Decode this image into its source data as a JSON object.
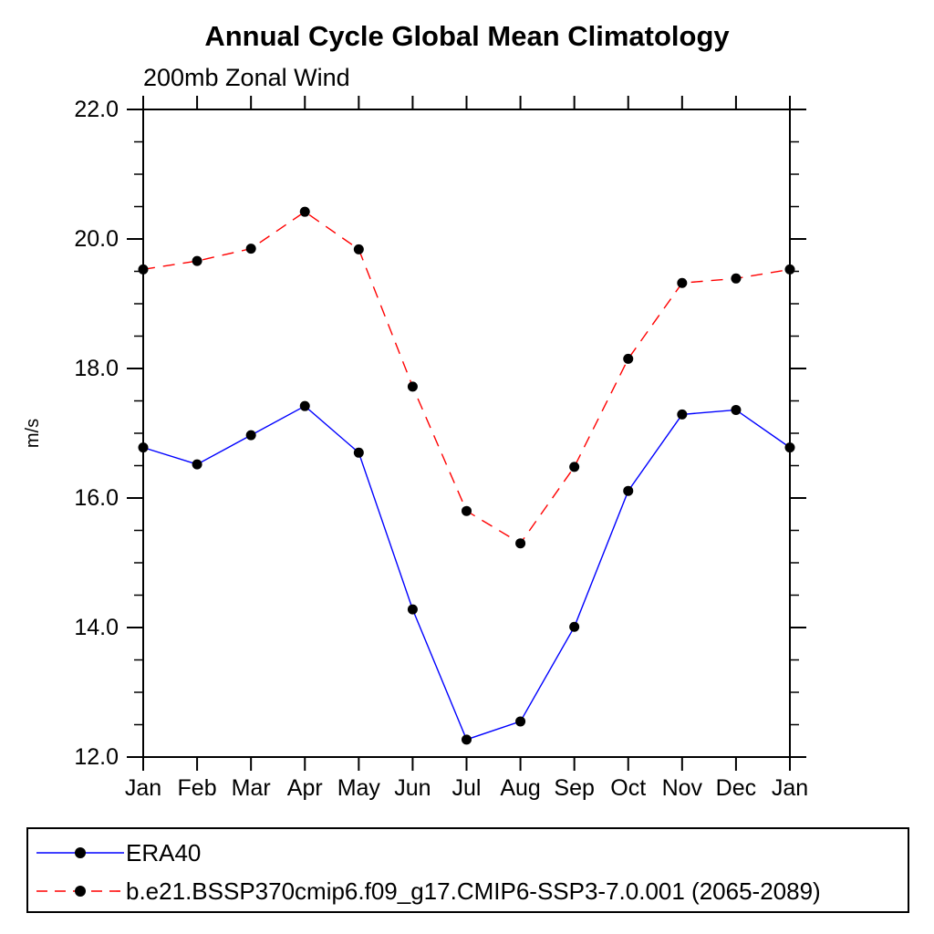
{
  "chart": {
    "title": "Annual Cycle Global Mean Climatology",
    "subtitle": "200mb Zonal Wind"
  },
  "chart_data": {
    "type": "line",
    "title": "Annual Cycle Global Mean Climatology",
    "subtitle": "200mb Zonal Wind",
    "xlabel": "",
    "ylabel": "m/s",
    "categories": [
      "Jan",
      "Feb",
      "Mar",
      "Apr",
      "May",
      "Jun",
      "Jul",
      "Aug",
      "Sep",
      "Oct",
      "Nov",
      "Dec",
      "Jan"
    ],
    "ylim": [
      12.0,
      22.0
    ],
    "ytick_major": [
      12.0,
      14.0,
      16.0,
      18.0,
      20.0,
      22.0
    ],
    "ytick_major_labels": [
      "12.0",
      "14.0",
      "16.0",
      "18.0",
      "20.0",
      "22.0"
    ],
    "ytick_minor_interval": 0.5,
    "grid": false,
    "legend_position": "bottom",
    "axis_color": "#000000",
    "marker_color": "#000000",
    "series": [
      {
        "name": "ERA40",
        "color": "#0000ff",
        "line_style": "solid",
        "marker": "circle",
        "values": [
          16.78,
          16.52,
          16.97,
          17.42,
          16.7,
          14.28,
          12.27,
          12.55,
          14.01,
          16.11,
          17.29,
          17.36,
          16.78
        ]
      },
      {
        "name": "b.e21.BSSP370cmip6.f09_g17.CMIP6-SSP3-7.0.001 (2065-2089)",
        "color": "#ff0000",
        "line_style": "dashed",
        "marker": "circle",
        "values": [
          19.53,
          19.66,
          19.85,
          20.42,
          19.84,
          17.72,
          15.8,
          15.3,
          16.48,
          18.15,
          19.32,
          19.39,
          19.53
        ]
      }
    ]
  }
}
